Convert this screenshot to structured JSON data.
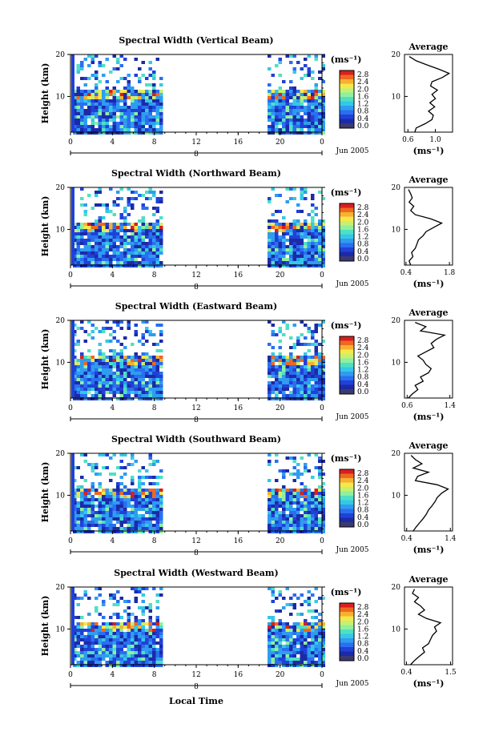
{
  "colors": {
    "scale": [
      "#1c2aa6",
      "#2041d8",
      "#2a6ff0",
      "#2f9cf0",
      "#35c8e6",
      "#4fe0c4",
      "#8ef0a0",
      "#c8f070",
      "#f6e84a",
      "#f8b030",
      "#f06820",
      "#d8201e"
    ],
    "floor": "#3a3a70",
    "line": "#000000"
  },
  "xlabel": "Local Time",
  "chart_data": [
    {
      "type": "heatmap",
      "title": "Spectral Width (Vertical Beam)",
      "ylabel": "Height (km)",
      "yticks": [
        "20",
        "10"
      ],
      "ylim": [
        1.5,
        20
      ],
      "xticks": [
        "0",
        "4",
        "8",
        "12",
        "16",
        "20",
        "0"
      ],
      "xlim": [
        0,
        24
      ],
      "date_marker": "8",
      "date_label": "Jun 2005",
      "data_gap_hours": [
        8.5,
        18.5
      ],
      "colorbar": {
        "unit": "(ms⁻¹)",
        "ticks": [
          "2.8",
          "2.4",
          "2.0",
          "1.6",
          "1.2",
          "0.8",
          "0.4",
          "0.0"
        ],
        "range": [
          0,
          2.8
        ]
      },
      "average": {
        "title": "Average",
        "xlabel": "(ms⁻¹)",
        "xticks": [
          "0.6",
          "1.0"
        ],
        "yticks": [
          "20",
          "10"
        ],
        "xlim": [
          0.55,
          1.25
        ],
        "heights": [
          1.5,
          2.5,
          3.5,
          4.5,
          5.5,
          6.5,
          7.5,
          8.5,
          9.5,
          10.5,
          11.5,
          12.5,
          13.5,
          14.5,
          15.5,
          16.5,
          17.5,
          18.5,
          19.5
        ],
        "values": [
          0.7,
          0.72,
          0.85,
          0.95,
          0.97,
          0.9,
          0.99,
          0.92,
          1.0,
          0.95,
          1.03,
          0.93,
          0.95,
          1.1,
          1.2,
          1.05,
          0.88,
          0.72,
          0.62
        ]
      }
    },
    {
      "type": "heatmap",
      "title": "Spectral Width (Northward Beam)",
      "ylabel": "Height (km)",
      "yticks": [
        "20",
        "10"
      ],
      "ylim": [
        1.5,
        20
      ],
      "xticks": [
        "0",
        "4",
        "8",
        "12",
        "16",
        "20",
        "0"
      ],
      "xlim": [
        0,
        24
      ],
      "date_marker": "8",
      "date_label": "Jun 2005",
      "data_gap_hours": [
        8.5,
        18.5
      ],
      "colorbar": {
        "unit": "(ms⁻¹)",
        "ticks": [
          "2.8",
          "2.4",
          "2.0",
          "1.6",
          "1.2",
          "0.8",
          "0.4",
          "0.0"
        ],
        "range": [
          0,
          2.8
        ]
      },
      "average": {
        "title": "Average",
        "xlabel": "(ms⁻¹)",
        "xticks": [
          "0.4",
          "1.8"
        ],
        "yticks": [
          "20",
          "10"
        ],
        "xlim": [
          0.35,
          1.9
        ],
        "heights": [
          1.5,
          2.5,
          3.5,
          4.5,
          5.5,
          6.5,
          7.5,
          8.5,
          9.5,
          10.5,
          11.5,
          12.5,
          13.5,
          14.5,
          15.5,
          16.5,
          17.5,
          18.5,
          19.5
        ],
        "values": [
          0.55,
          0.5,
          0.62,
          0.58,
          0.7,
          0.75,
          0.8,
          0.95,
          1.05,
          1.3,
          1.55,
          1.2,
          0.7,
          0.55,
          0.65,
          0.5,
          0.6,
          0.55,
          0.48
        ]
      }
    },
    {
      "type": "heatmap",
      "title": "Spectral Width (Eastward Beam)",
      "ylabel": "Height (km)",
      "yticks": [
        "20",
        "10"
      ],
      "ylim": [
        1.5,
        20
      ],
      "xticks": [
        "0",
        "4",
        "8",
        "12",
        "16",
        "20",
        "0"
      ],
      "xlim": [
        0,
        24
      ],
      "date_marker": "8",
      "date_label": "Jun 2005",
      "data_gap_hours": [
        8.5,
        18.5
      ],
      "colorbar": {
        "unit": "(ms⁻¹)",
        "ticks": [
          "2.8",
          "2.4",
          "2.0",
          "1.6",
          "1.2",
          "0.8",
          "0.4",
          "0.0"
        ],
        "range": [
          0,
          2.8
        ]
      },
      "average": {
        "title": "Average",
        "xlabel": "(ms⁻¹)",
        "xticks": [
          "0.6",
          "1.4"
        ],
        "yticks": [
          "20",
          "10"
        ],
        "xlim": [
          0.55,
          1.45
        ],
        "heights": [
          1.5,
          2.5,
          3.5,
          4.5,
          5.5,
          6.5,
          7.5,
          8.5,
          9.5,
          10.5,
          11.5,
          12.5,
          13.5,
          14.5,
          15.5,
          16.5,
          17.5,
          18.5,
          19.5
        ],
        "values": [
          0.62,
          0.7,
          0.8,
          0.75,
          0.9,
          0.85,
          1.0,
          1.05,
          0.95,
          0.9,
          0.8,
          0.95,
          1.1,
          1.05,
          1.15,
          1.3,
          0.85,
          0.95,
          0.75
        ]
      }
    },
    {
      "type": "heatmap",
      "title": "Spectral Width (Southward Beam)",
      "ylabel": "Height (km)",
      "yticks": [
        "20",
        "10"
      ],
      "ylim": [
        1.5,
        20
      ],
      "xticks": [
        "0",
        "4",
        "8",
        "12",
        "16",
        "20",
        "0"
      ],
      "xlim": [
        0,
        24
      ],
      "date_marker": "8",
      "date_label": "Jun 2005",
      "data_gap_hours": [
        8.5,
        18.5
      ],
      "colorbar": {
        "unit": "(ms⁻¹)",
        "ticks": [
          "2.8",
          "2.4",
          "2.0",
          "1.6",
          "1.2",
          "0.8",
          "0.4",
          "0.0"
        ],
        "range": [
          0,
          2.8
        ]
      },
      "average": {
        "title": "Average",
        "xlabel": "(ms⁻¹)",
        "xticks": [
          "0.4",
          "1.4"
        ],
        "yticks": [
          "20",
          "10"
        ],
        "xlim": [
          0.35,
          1.45
        ],
        "heights": [
          1.5,
          2.5,
          3.5,
          4.5,
          5.5,
          6.5,
          7.5,
          8.5,
          9.5,
          10.5,
          11.5,
          12.5,
          13.5,
          14.5,
          15.5,
          16.5,
          17.5,
          18.5,
          19.5
        ],
        "values": [
          0.55,
          0.62,
          0.7,
          0.78,
          0.85,
          0.9,
          0.98,
          1.05,
          1.1,
          1.2,
          1.35,
          1.1,
          0.6,
          0.65,
          0.9,
          0.55,
          0.75,
          0.6,
          0.5
        ]
      }
    },
    {
      "type": "heatmap",
      "title": "Spectral Width (Westward Beam)",
      "ylabel": "Height (km)",
      "yticks": [
        "20",
        "10"
      ],
      "ylim": [
        1.5,
        20
      ],
      "xticks": [
        "0",
        "4",
        "8",
        "12",
        "16",
        "20",
        "0"
      ],
      "xlim": [
        0,
        24
      ],
      "date_marker": "8",
      "date_label": "Jun 2005",
      "data_gap_hours": [
        8.5,
        18.5
      ],
      "colorbar": {
        "unit": "(ms⁻¹)",
        "ticks": [
          "2.8",
          "2.4",
          "2.0",
          "1.6",
          "1.2",
          "0.8",
          "0.4",
          "0.0"
        ],
        "range": [
          0,
          2.8
        ]
      },
      "average": {
        "title": "Average",
        "xlabel": "(ms⁻¹)",
        "xticks": [
          "0.4",
          "1.5"
        ],
        "yticks": [
          "20",
          "10"
        ],
        "xlim": [
          0.35,
          1.55
        ],
        "heights": [
          1.5,
          2.5,
          3.5,
          4.5,
          5.5,
          6.5,
          7.5,
          8.5,
          9.5,
          10.5,
          11.5,
          12.5,
          13.5,
          14.5,
          15.5,
          16.5,
          17.5,
          18.5,
          19.5
        ],
        "values": [
          0.5,
          0.6,
          0.72,
          0.85,
          0.8,
          0.95,
          1.0,
          1.05,
          1.15,
          1.1,
          1.25,
          0.9,
          0.7,
          0.85,
          0.75,
          0.6,
          0.7,
          0.55,
          0.6
        ]
      }
    }
  ]
}
